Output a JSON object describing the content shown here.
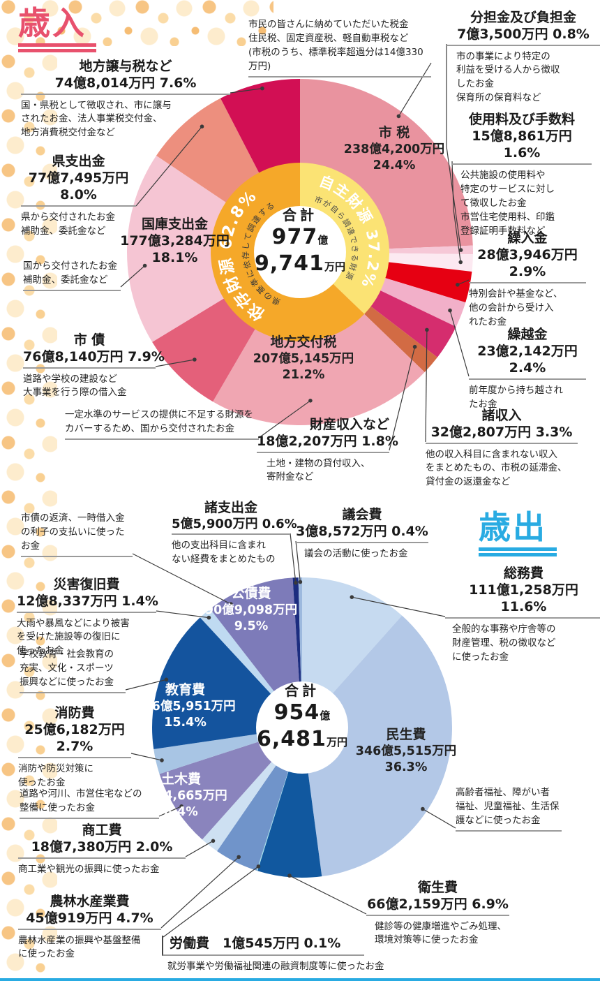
{
  "page": {
    "bottom_bar_color": "#29abe2"
  },
  "chart_data": [
    {
      "type": "pie",
      "id": "revenue",
      "title": "歳入",
      "title_color": "#e8516d",
      "total": {
        "label": "合計",
        "oku": "977",
        "oku_unit": "億",
        "man": "9,741",
        "man_unit": "万円"
      },
      "inner_ring": [
        {
          "label": "自主財源",
          "pct": "37.2%",
          "value": 37.2,
          "desc": "市が自ら調達できる財源",
          "color": "#fbe374"
        },
        {
          "label": "依存財源",
          "pct": "62.8%",
          "value": 62.8,
          "desc": "国や県の基準に依存して調達する財源",
          "color": "#f5a829"
        }
      ],
      "segments": [
        {
          "label": "市 税",
          "amount": "238億4,200万円",
          "pct": "24.4%",
          "value": 24.4,
          "color": "#e9939f",
          "desc": "市民の皆さんに納めていただいた税金\n住民税、固定資産税、軽自動車税など\n(市税のうち、標準税率超過分は14億330万円)"
        },
        {
          "label": "分担金及び負担金",
          "amount": "7億3,500万円",
          "pct": "0.8%",
          "value": 0.8,
          "color": "#f6c8d7",
          "desc": "市の事業により特定の\n利益を受ける人から徴収\nしたお金\n保育所の保育料など"
        },
        {
          "label": "使用料及び手数料",
          "amount": "15億8,861万円",
          "pct": "1.6%",
          "value": 1.6,
          "color": "#fce9f1",
          "desc": "公共施設の使用料や\n特定のサービスに対し\nて徴収したお金\n市営住宅使用料、印鑑\n登録証明手数料など"
        },
        {
          "label": "繰入金",
          "amount": "28億3,946万円",
          "pct": "2.9%",
          "value": 2.9,
          "color": "#e60012",
          "desc": "特別会計や基金など、\n他の会計から受け入\nれたお金"
        },
        {
          "label": "繰越金",
          "amount": "23億2,142万円",
          "pct": "2.4%",
          "value": 2.4,
          "color": "#f2b0c9",
          "desc": "前年度から持ち越され\nたお金"
        },
        {
          "label": "諸収入",
          "amount": "32億2,807万円",
          "pct": "3.3%",
          "value": 3.3,
          "color": "#d52d6e",
          "desc": "他の収入科目に含まれない収入\nをまとめたもの、市税の延滞金、\n貸付金の返還金など"
        },
        {
          "label": "財産収入など",
          "amount": "18億2,207万円",
          "pct": "1.8%",
          "value": 1.8,
          "color": "#d26b44",
          "desc": "土地・建物の貸付収入、\n寄附金など"
        },
        {
          "label": "地方交付税",
          "amount": "207億5,145万円",
          "pct": "21.2%",
          "value": 21.2,
          "color": "#f0a6b2",
          "desc": "一定水準のサービスの提供に不足する財源を\nカバーするため、国から交付されたお金"
        },
        {
          "label": "市 債",
          "amount": "76億8,140万円",
          "pct": "7.9%",
          "value": 7.9,
          "color": "#e4607a",
          "desc": "道路や学校の建設など\n大事業を行う際の借入金"
        },
        {
          "label": "国庫支出金",
          "amount": "177億3,284万円",
          "pct": "18.1%",
          "value": 18.1,
          "color": "#f5c5d3",
          "desc": "国から交付されたお金\n補助金、委託金など"
        },
        {
          "label": "県支出金",
          "amount": "77億7,495万円",
          "pct": "8.0%",
          "value": 8.0,
          "color": "#ed8f7e",
          "desc": "県から交付されたお金\n補助金、委託金など"
        },
        {
          "label": "地方譲与税など",
          "amount": "74億8,014万円",
          "pct": "7.6%",
          "value": 7.6,
          "color": "#d20f54",
          "desc": "国・県税として徴収され、市に譲与\nされたお金、法人事業税交付金、\n地方消費税交付金など"
        }
      ]
    },
    {
      "type": "pie",
      "id": "expenditure",
      "title": "歳出",
      "title_color": "#29abe2",
      "total": {
        "label": "合計",
        "oku": "954",
        "oku_unit": "億",
        "man": "6,481",
        "man_unit": "万円"
      },
      "segments": [
        {
          "label": "総務費",
          "amount": "111億1,258万円",
          "pct": "11.6%",
          "value": 11.6,
          "color": "#c6daf0",
          "desc": "全般的な事務や庁舎等の\n財産管理、税の徴収など\nに使ったお金"
        },
        {
          "label": "民生費",
          "amount": "346億5,515万円",
          "pct": "36.3%",
          "value": 36.3,
          "color": "#b3c8e7",
          "desc": "高齢者福祉、障がい者\n福祉、児童福祉、生活保\n護などに使ったお金"
        },
        {
          "label": "衛生費",
          "amount": "66億2,159万円",
          "pct": "6.9%",
          "value": 6.9,
          "color": "#11589f",
          "desc": "健診等の健康増進やごみ処理、\n環境対策等に使ったお金"
        },
        {
          "label": "労働費",
          "amount": "1億545万円",
          "pct": "0.1%",
          "value": 0.1,
          "color": "#9ddce8",
          "desc": "就労事業や労働福祉関連の融資制度等に使ったお金"
        },
        {
          "label": "農林水産業費",
          "amount": "45億919万円",
          "pct": "4.7%",
          "value": 4.7,
          "color": "#7094ca",
          "desc": "農林水産業の振興や基盤整備\nに使ったお金"
        },
        {
          "label": "商工費",
          "amount": "18億7,380万円",
          "pct": "2.0%",
          "value": 2.0,
          "color": "#cde0f2",
          "desc": "商工業や観光の振興に使ったお金"
        },
        {
          "label": "土木費",
          "amount": "80億4,665万円",
          "pct": "8.4%",
          "value": 8.4,
          "color": "#8a84bd",
          "desc": "道路や河川、市営住宅などの\n整備に使ったお金"
        },
        {
          "label": "消防費",
          "amount": "25億6,182万円",
          "pct": "2.7%",
          "value": 2.7,
          "color": "#a8c5e4",
          "desc": "消防や防災対策に\n使ったお金"
        },
        {
          "label": "教育費",
          "amount": "146億5,951万円",
          "pct": "15.4%",
          "value": 15.4,
          "color": "#14549e",
          "desc": "学校教育・社会教育の\n充実、文化・スポーツ\n振興などに使ったお金"
        },
        {
          "label": "災害復旧費",
          "amount": "12億8,337万円",
          "pct": "1.4%",
          "value": 1.4,
          "color": "#bfdaf1",
          "desc": "大雨や暴風などにより被害\nを受けた施設等の復旧に\n使ったお金"
        },
        {
          "label": "公債費",
          "amount": "90億9,098万円",
          "pct": "9.5%",
          "value": 9.5,
          "color": "#7d7bb9",
          "desc": "市債の返済、一時借入金\nの利子の支払いに使った\nお金"
        },
        {
          "label": "諸支出金",
          "amount": "5億5,900万円",
          "pct": "0.6%",
          "value": 0.6,
          "color": "#1c2d7f",
          "desc": "他の支出科目に含まれ\nない経費をまとめたもの"
        },
        {
          "label": "議会費",
          "amount": "3億8,572万円",
          "pct": "0.4%",
          "value": 0.4,
          "color": "#9db9de",
          "desc": "議会の活動に使ったお金"
        }
      ]
    }
  ]
}
